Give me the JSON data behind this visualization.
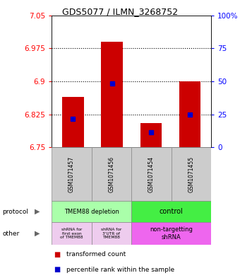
{
  "title": "GDS5077 / ILMN_3268752",
  "samples": [
    "GSM1071457",
    "GSM1071456",
    "GSM1071454",
    "GSM1071455"
  ],
  "bar_bottoms": [
    6.75,
    6.75,
    6.75,
    6.75
  ],
  "bar_tops": [
    6.865,
    6.99,
    6.805,
    6.9
  ],
  "blue_marks": [
    6.815,
    6.895,
    6.785,
    6.825
  ],
  "ylim": [
    6.75,
    7.05
  ],
  "yticks_left": [
    6.75,
    6.825,
    6.9,
    6.975,
    7.05
  ],
  "yticks_right": [
    0,
    25,
    50,
    75,
    100
  ],
  "ytick_labels_left": [
    "6.75",
    "6.825",
    "6.9",
    "6.975",
    "7.05"
  ],
  "ytick_labels_right": [
    "0",
    "25",
    "50",
    "75",
    "100%"
  ],
  "bar_color": "#cc0000",
  "blue_color": "#0000cc",
  "protocol_label_0": "TMEM88 depletion",
  "protocol_label_1": "control",
  "protocol_color_0": "#aaffaa",
  "protocol_color_1": "#44ee44",
  "other_label_0": "shRNA for\nfirst exon\nof TMEM88",
  "other_label_1": "shRNA for\n3'UTR of\nTMEM88",
  "other_label_2": "non-targetting\nshRNA",
  "other_color_0": "#eeccee",
  "other_color_1": "#eeccee",
  "other_color_2": "#ee66ee",
  "legend_red": "transformed count",
  "legend_blue": "percentile rank within the sample",
  "sample_box_color": "#cccccc",
  "bg_color": "#ffffff"
}
